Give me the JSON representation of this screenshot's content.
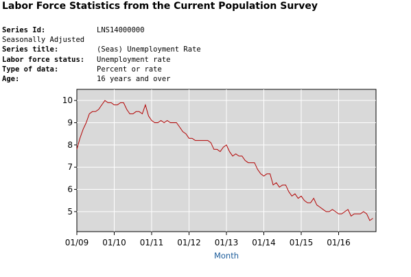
{
  "page": {
    "title": "Labor Force Statistics from the Current Population Survey"
  },
  "series_info": {
    "series_id_label": "Series Id:",
    "series_id_value": "LNS14000000",
    "adjustment": "Seasonally Adjusted",
    "series_title_label": "Series title:",
    "series_title_value": "(Seas) Unemployment Rate",
    "labor_force_status_label": "Labor force status:",
    "labor_force_status_value": "Unemployment rate",
    "type_of_data_label": "Type of data:",
    "type_of_data_value": "Percent or rate",
    "age_label": "Age:",
    "age_value": "16 years and over"
  },
  "chart_data": {
    "type": "line",
    "title": "",
    "xlabel": "Month",
    "ylabel": "",
    "ylim": [
      4.1,
      10.5
    ],
    "x_tick_labels": [
      "01/09",
      "01/10",
      "01/11",
      "01/12",
      "01/13",
      "01/14",
      "01/15",
      "01/16"
    ],
    "y_ticks": [
      5,
      6,
      7,
      8,
      9,
      10
    ],
    "grid": true,
    "line_color": "#b30000",
    "plot_background": "#d9d9d9",
    "x_start": "2009-01",
    "series": [
      {
        "values": [
          7.8,
          8.3,
          8.7,
          9.0,
          9.4,
          9.5,
          9.5,
          9.6,
          9.8,
          10.0,
          9.9,
          9.9,
          9.8,
          9.8,
          9.9,
          9.9,
          9.6,
          9.4,
          9.4,
          9.5,
          9.5,
          9.4,
          9.8,
          9.3,
          9.1,
          9.0,
          9.0,
          9.1,
          9.0,
          9.1,
          9.0,
          9.0,
          9.0,
          8.8,
          8.6,
          8.5,
          8.3,
          8.3,
          8.2,
          8.2,
          8.2,
          8.2,
          8.2,
          8.1,
          7.8,
          7.8,
          7.7,
          7.9,
          8.0,
          7.7,
          7.5,
          7.6,
          7.5,
          7.5,
          7.3,
          7.2,
          7.2,
          7.2,
          6.9,
          6.7,
          6.6,
          6.7,
          6.7,
          6.2,
          6.3,
          6.1,
          6.2,
          6.2,
          5.9,
          5.7,
          5.8,
          5.6,
          5.7,
          5.5,
          5.4,
          5.4,
          5.6,
          5.3,
          5.2,
          5.1,
          5.0,
          5.0,
          5.1,
          5.0,
          4.9,
          4.9,
          5.0,
          5.1,
          4.8,
          4.9,
          4.9,
          4.9,
          5.0,
          4.9,
          4.6,
          4.7
        ]
      }
    ]
  }
}
